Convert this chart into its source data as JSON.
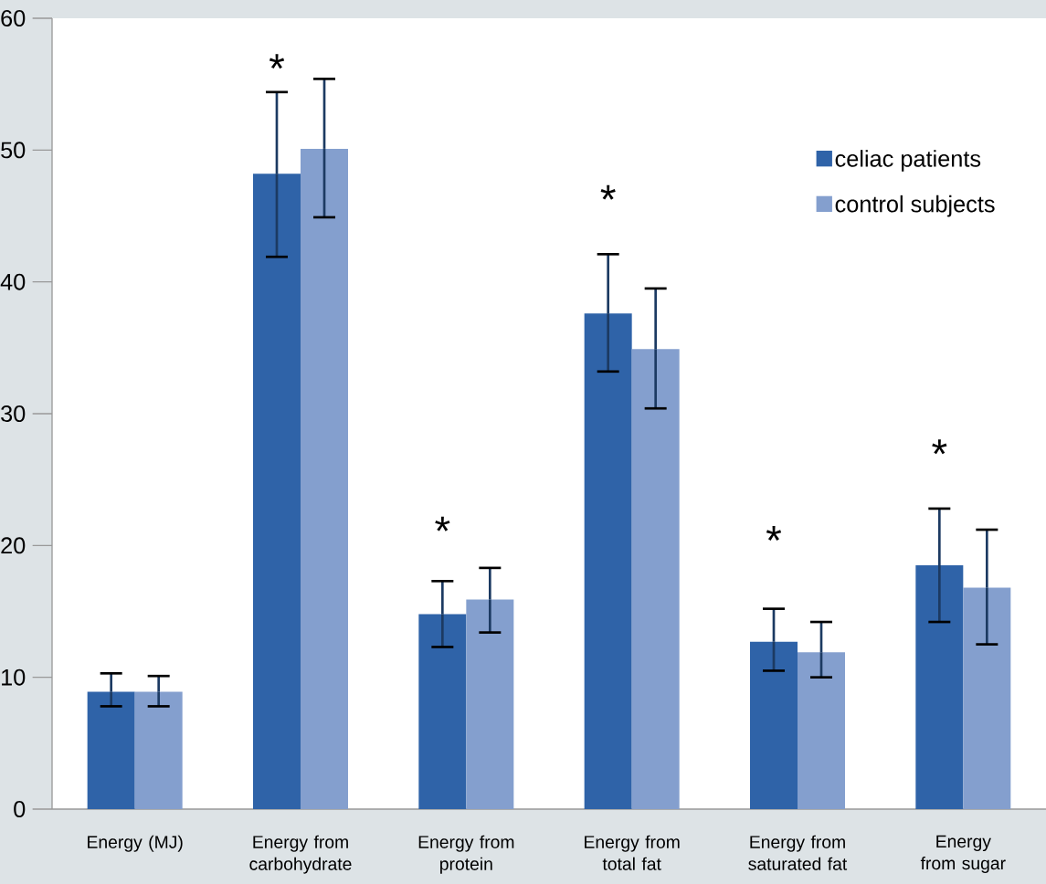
{
  "chart_data": {
    "type": "bar",
    "categories": [
      "Energy (MJ)",
      "Energy from carbohydrate",
      "Energy from protein",
      "Energy from total fat",
      "Energy from saturated fat",
      "Energy from sugar"
    ],
    "series": [
      {
        "name": "celiac patients",
        "color": "#2f63a8",
        "values": [
          8.9,
          48.2,
          14.8,
          37.6,
          12.7,
          18.5
        ],
        "errors": [
          [
            7.8,
            10.3
          ],
          [
            41.9,
            54.4
          ],
          [
            12.3,
            17.3
          ],
          [
            33.2,
            42.1
          ],
          [
            10.5,
            15.2
          ],
          [
            14.2,
            22.8
          ]
        ]
      },
      {
        "name": "control subjects",
        "color": "#849fce",
        "values": [
          8.9,
          50.1,
          15.9,
          34.9,
          11.9,
          16.8
        ],
        "errors": [
          [
            7.8,
            10.1
          ],
          [
            44.9,
            55.4
          ],
          [
            13.4,
            18.3
          ],
          [
            30.4,
            39.5
          ],
          [
            10.0,
            14.2
          ],
          [
            12.5,
            21.2
          ]
        ]
      }
    ],
    "ylim": [
      0,
      60
    ],
    "yticks": [
      0,
      10,
      20,
      30,
      40,
      50,
      60
    ],
    "grid": false,
    "legend": "top right",
    "annotations": [
      "*",
      "*",
      "*",
      "*",
      "*"
    ]
  }
}
